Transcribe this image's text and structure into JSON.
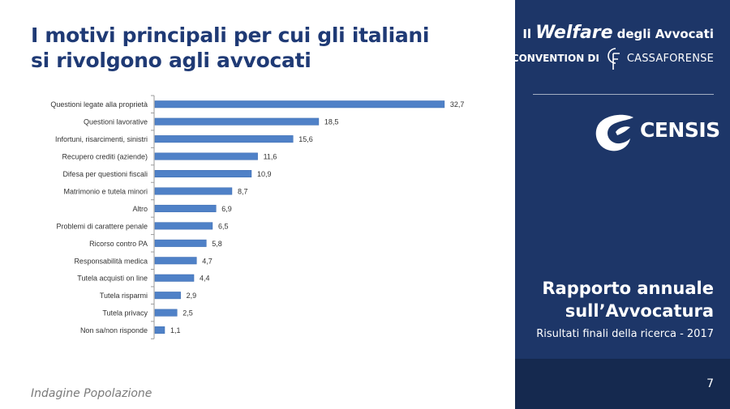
{
  "slide": {
    "title_line1": "I motivi principali per cui gli italiani",
    "title_line2": "si rivolgono agli avvocati",
    "footer_note": "Indagine Popolazione",
    "page_number": "7"
  },
  "sidebar": {
    "brand_prefix": "Il",
    "brand_name": "Welfare",
    "brand_suffix": "degli Avvocati",
    "convention_label": "CONVENTION DI",
    "cassa_name": "CASSAFORENSE",
    "censis_name": "CENSIS",
    "report_title_line1": "Rapporto annuale",
    "report_title_line2": "sull’Avvocatura",
    "report_subtitle": "Risultati finali della ricerca - 2017"
  },
  "colors": {
    "title": "#1f3a75",
    "sidebar_bg": "#1d3668",
    "bar_fill": "#4f81c7",
    "bar_edge": "#3a6ab0"
  },
  "chart_data": {
    "type": "bar",
    "orientation": "horizontal",
    "categories": [
      "Questioni legate alla proprietà",
      "Questioni lavorative",
      "Infortuni, risarcimenti, sinistri",
      "Recupero crediti  (aziende)",
      "Difesa per questioni fiscali",
      "Matrimonio e tutela minori",
      "Altro",
      "Problemi di carattere penale",
      "Ricorso contro PA",
      "Responsabilità medica",
      "Tutela acquisti on line",
      "Tutela risparmi",
      "Tutela privacy",
      "Non sa/non risponde"
    ],
    "values": [
      32.7,
      18.5,
      15.6,
      11.6,
      10.9,
      8.7,
      6.9,
      6.5,
      5.8,
      4.7,
      4.4,
      2.9,
      2.5,
      1.1
    ],
    "value_labels": [
      "32,7",
      "18,5",
      "15,6",
      "11,6",
      "10,9",
      "8,7",
      "6,9",
      "6,5",
      "5,8",
      "4,7",
      "4,4",
      "2,9",
      "2,5",
      "1,1"
    ],
    "title": "",
    "xlabel": "",
    "ylabel": "",
    "xlim": [
      0,
      35
    ],
    "grid": false,
    "legend": "none"
  }
}
